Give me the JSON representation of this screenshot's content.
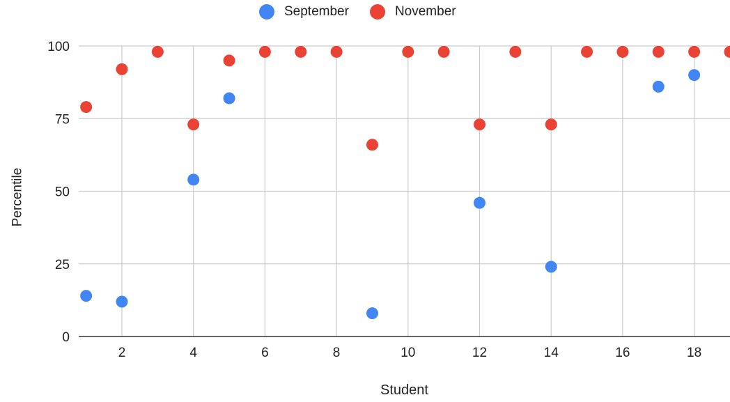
{
  "chart_data": {
    "type": "scatter",
    "title": "",
    "xlabel": "Student",
    "ylabel": "Percentile",
    "xlim": [
      0.9,
      19
    ],
    "ylim": [
      0,
      100
    ],
    "xticks": [
      2,
      4,
      6,
      8,
      10,
      12,
      14,
      16,
      18
    ],
    "yticks": [
      0,
      25,
      50,
      75,
      100
    ],
    "grid": true,
    "legend_position": "top",
    "series": [
      {
        "name": "September",
        "color": "#4285f4",
        "points": [
          {
            "x": 1,
            "y": 14
          },
          {
            "x": 2,
            "y": 12
          },
          {
            "x": 4,
            "y": 54
          },
          {
            "x": 5,
            "y": 82
          },
          {
            "x": 9,
            "y": 8
          },
          {
            "x": 12,
            "y": 46
          },
          {
            "x": 14,
            "y": 24
          },
          {
            "x": 17,
            "y": 86
          },
          {
            "x": 18,
            "y": 90
          }
        ]
      },
      {
        "name": "November",
        "color": "#ea4335",
        "points": [
          {
            "x": 1,
            "y": 79
          },
          {
            "x": 2,
            "y": 92
          },
          {
            "x": 3,
            "y": 98
          },
          {
            "x": 4,
            "y": 73
          },
          {
            "x": 5,
            "y": 95
          },
          {
            "x": 6,
            "y": 98
          },
          {
            "x": 7,
            "y": 98
          },
          {
            "x": 8,
            "y": 98
          },
          {
            "x": 9,
            "y": 66
          },
          {
            "x": 10,
            "y": 98
          },
          {
            "x": 11,
            "y": 98
          },
          {
            "x": 12,
            "y": 73
          },
          {
            "x": 13,
            "y": 98
          },
          {
            "x": 14,
            "y": 73
          },
          {
            "x": 15,
            "y": 98
          },
          {
            "x": 16,
            "y": 98
          },
          {
            "x": 17,
            "y": 98
          },
          {
            "x": 18,
            "y": 98
          },
          {
            "x": 19,
            "y": 98
          }
        ]
      }
    ]
  }
}
